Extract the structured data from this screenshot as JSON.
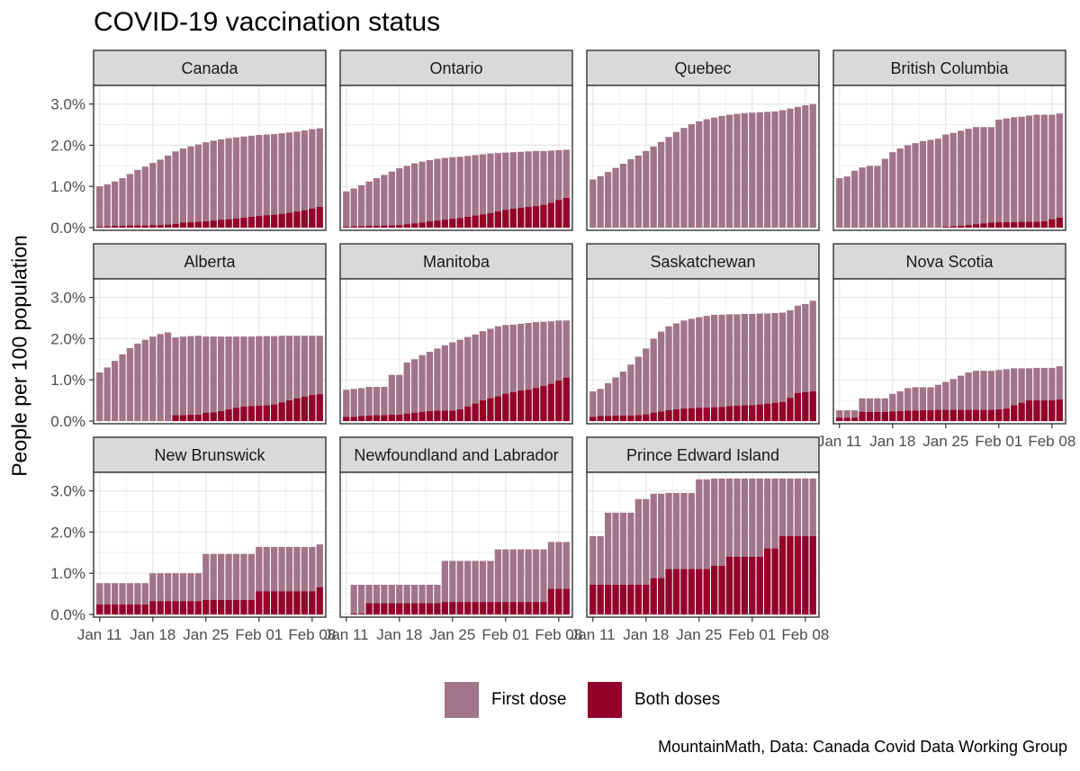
{
  "chart_data": {
    "type": "bar",
    "title": "COVID-19 vaccination status",
    "ylabel": "People per 100 population",
    "xlabel": "",
    "caption": "MountainMath, Data: Canada Covid Data Working Group",
    "ylim": [
      0,
      3.45
    ],
    "y_ticks": [
      "0.0%",
      "1.0%",
      "2.0%",
      "3.0%"
    ],
    "y_tick_values": [
      0,
      1,
      2,
      3
    ],
    "x_ticks": [
      "Jan 11",
      "Jan 18",
      "Jan 25",
      "Feb 01",
      "Feb 08"
    ],
    "x_tick_day_index": [
      0,
      7,
      14,
      21,
      28
    ],
    "x_start": "2021-01-11",
    "x_end": "2021-02-08",
    "stacking": "overlay",
    "legend": {
      "position": "bottom",
      "entries": [
        {
          "label": "First dose",
          "color": "#a27487"
        },
        {
          "label": "Both doses",
          "color": "#94002a"
        }
      ]
    },
    "grid": true,
    "panels": [
      {
        "name": "Canada",
        "first_dose": [
          1.0,
          1.05,
          1.12,
          1.2,
          1.3,
          1.4,
          1.48,
          1.57,
          1.65,
          1.75,
          1.85,
          1.92,
          1.97,
          2.02,
          2.07,
          2.11,
          2.14,
          2.17,
          2.19,
          2.21,
          2.23,
          2.25,
          2.26,
          2.27,
          2.29,
          2.31,
          2.33,
          2.36,
          2.39,
          2.41
        ],
        "both_doses": [
          0.02,
          0.03,
          0.04,
          0.04,
          0.05,
          0.05,
          0.05,
          0.06,
          0.06,
          0.07,
          0.09,
          0.12,
          0.13,
          0.14,
          0.15,
          0.17,
          0.19,
          0.2,
          0.22,
          0.24,
          0.26,
          0.28,
          0.3,
          0.31,
          0.33,
          0.36,
          0.39,
          0.42,
          0.46,
          0.5
        ]
      },
      {
        "name": "Ontario",
        "first_dose": [
          0.88,
          0.95,
          1.03,
          1.12,
          1.2,
          1.28,
          1.36,
          1.44,
          1.5,
          1.56,
          1.6,
          1.64,
          1.67,
          1.69,
          1.71,
          1.72,
          1.74,
          1.76,
          1.78,
          1.8,
          1.81,
          1.82,
          1.83,
          1.84,
          1.85,
          1.86,
          1.86,
          1.87,
          1.88,
          1.89
        ],
        "both_doses": [
          0.02,
          0.03,
          0.03,
          0.04,
          0.04,
          0.05,
          0.05,
          0.06,
          0.08,
          0.1,
          0.12,
          0.15,
          0.17,
          0.19,
          0.21,
          0.23,
          0.26,
          0.29,
          0.32,
          0.35,
          0.39,
          0.43,
          0.46,
          0.48,
          0.5,
          0.52,
          0.55,
          0.6,
          0.67,
          0.72
        ]
      },
      {
        "name": "Quebec",
        "first_dose": [
          1.17,
          1.25,
          1.35,
          1.45,
          1.55,
          1.66,
          1.75,
          1.86,
          1.97,
          2.08,
          2.2,
          2.32,
          2.42,
          2.51,
          2.58,
          2.63,
          2.67,
          2.71,
          2.74,
          2.76,
          2.78,
          2.79,
          2.8,
          2.81,
          2.82,
          2.85,
          2.89,
          2.93,
          2.97,
          3.0
        ],
        "both_doses": [
          0,
          0,
          0,
          0,
          0,
          0,
          0,
          0,
          0,
          0,
          0,
          0,
          0,
          0,
          0,
          0,
          0,
          0,
          0,
          0,
          0,
          0,
          0,
          0,
          0,
          0,
          0,
          0,
          0,
          0
        ]
      },
      {
        "name": "British Columbia",
        "first_dose": [
          1.2,
          1.24,
          1.38,
          1.46,
          1.5,
          1.5,
          1.67,
          1.83,
          1.92,
          2.0,
          2.05,
          2.1,
          2.13,
          2.16,
          2.26,
          2.3,
          2.35,
          2.4,
          2.44,
          2.44,
          2.44,
          2.62,
          2.65,
          2.68,
          2.69,
          2.72,
          2.74,
          2.74,
          2.74,
          2.77
        ],
        "both_doses": [
          0,
          0,
          0,
          0,
          0,
          0,
          0,
          0,
          0,
          0,
          0,
          0,
          0,
          0,
          0.02,
          0.03,
          0.04,
          0.06,
          0.08,
          0.1,
          0.12,
          0.13,
          0.13,
          0.13,
          0.14,
          0.14,
          0.14,
          0.15,
          0.2,
          0.24
        ]
      },
      {
        "name": "Alberta",
        "first_dose": [
          1.18,
          1.3,
          1.46,
          1.62,
          1.77,
          1.88,
          1.97,
          2.05,
          2.11,
          2.15,
          2.03,
          2.05,
          2.06,
          2.07,
          2.05,
          2.05,
          2.05,
          2.05,
          2.05,
          2.05,
          2.05,
          2.06,
          2.06,
          2.06,
          2.07,
          2.07,
          2.07,
          2.07,
          2.07,
          2.07
        ],
        "both_doses": [
          0,
          0,
          0,
          0,
          0,
          0,
          0,
          0,
          0,
          0,
          0.14,
          0.14,
          0.15,
          0.15,
          0.2,
          0.21,
          0.24,
          0.28,
          0.32,
          0.35,
          0.36,
          0.37,
          0.38,
          0.4,
          0.45,
          0.5,
          0.55,
          0.59,
          0.63,
          0.65
        ]
      },
      {
        "name": "Manitoba",
        "first_dose": [
          0.76,
          0.78,
          0.8,
          0.83,
          0.83,
          0.83,
          1.12,
          1.12,
          1.42,
          1.5,
          1.6,
          1.68,
          1.76,
          1.84,
          1.91,
          1.97,
          2.04,
          2.1,
          2.18,
          2.24,
          2.3,
          2.33,
          2.34,
          2.36,
          2.38,
          2.4,
          2.41,
          2.42,
          2.44,
          2.44
        ],
        "both_doses": [
          0.1,
          0.1,
          0.12,
          0.13,
          0.14,
          0.14,
          0.15,
          0.15,
          0.18,
          0.2,
          0.22,
          0.24,
          0.25,
          0.25,
          0.25,
          0.28,
          0.35,
          0.42,
          0.5,
          0.55,
          0.6,
          0.66,
          0.7,
          0.74,
          0.76,
          0.8,
          0.85,
          0.9,
          0.98,
          1.05
        ]
      },
      {
        "name": "Saskatchewan",
        "first_dose": [
          0.72,
          0.78,
          0.92,
          1.06,
          1.2,
          1.37,
          1.56,
          1.76,
          2.0,
          2.17,
          2.3,
          2.37,
          2.44,
          2.48,
          2.52,
          2.55,
          2.58,
          2.58,
          2.59,
          2.59,
          2.6,
          2.6,
          2.61,
          2.61,
          2.62,
          2.63,
          2.69,
          2.8,
          2.84,
          2.92
        ],
        "both_doses": [
          0.1,
          0.12,
          0.12,
          0.13,
          0.13,
          0.13,
          0.14,
          0.16,
          0.2,
          0.23,
          0.26,
          0.28,
          0.3,
          0.31,
          0.32,
          0.32,
          0.33,
          0.34,
          0.36,
          0.37,
          0.38,
          0.38,
          0.4,
          0.42,
          0.44,
          0.46,
          0.56,
          0.68,
          0.7,
          0.72
        ]
      },
      {
        "name": "Nova Scotia",
        "first_dose": [
          0.26,
          0.26,
          0.26,
          0.55,
          0.55,
          0.55,
          0.55,
          0.66,
          0.72,
          0.8,
          0.82,
          0.82,
          0.82,
          0.88,
          0.95,
          1.02,
          1.1,
          1.18,
          1.22,
          1.22,
          1.22,
          1.24,
          1.26,
          1.28,
          1.28,
          1.28,
          1.29,
          1.29,
          1.29,
          1.33
        ],
        "both_doses": [
          0.08,
          0.08,
          0.08,
          0.22,
          0.22,
          0.22,
          0.22,
          0.23,
          0.24,
          0.25,
          0.25,
          0.26,
          0.26,
          0.27,
          0.27,
          0.27,
          0.27,
          0.27,
          0.27,
          0.27,
          0.27,
          0.28,
          0.3,
          0.38,
          0.44,
          0.5,
          0.5,
          0.5,
          0.5,
          0.52
        ]
      },
      {
        "name": "New Brunswick",
        "first_dose": [
          0.76,
          0.76,
          0.76,
          0.76,
          0.76,
          0.76,
          0.76,
          1.0,
          1.0,
          1.0,
          1.0,
          1.0,
          1.0,
          1.0,
          1.47,
          1.47,
          1.47,
          1.47,
          1.47,
          1.47,
          1.47,
          1.64,
          1.64,
          1.64,
          1.64,
          1.64,
          1.64,
          1.64,
          1.64,
          1.7
        ],
        "both_doses": [
          0.24,
          0.24,
          0.24,
          0.24,
          0.24,
          0.24,
          0.24,
          0.32,
          0.32,
          0.32,
          0.32,
          0.32,
          0.32,
          0.32,
          0.35,
          0.35,
          0.35,
          0.35,
          0.35,
          0.35,
          0.35,
          0.56,
          0.56,
          0.56,
          0.56,
          0.56,
          0.56,
          0.56,
          0.56,
          0.66
        ]
      },
      {
        "name": "Newfoundland and Labrador",
        "first_dose": [
          0,
          0.72,
          0.72,
          0.72,
          0.72,
          0.72,
          0.72,
          0.72,
          0.72,
          0.72,
          0.72,
          0.72,
          0.72,
          1.3,
          1.3,
          1.3,
          1.3,
          1.3,
          1.3,
          1.3,
          1.58,
          1.58,
          1.58,
          1.58,
          1.58,
          1.58,
          1.58,
          1.76,
          1.76,
          1.76
        ],
        "both_doses": [
          0,
          0.02,
          0.02,
          0.27,
          0.27,
          0.27,
          0.27,
          0.27,
          0.27,
          0.27,
          0.27,
          0.27,
          0.27,
          0.3,
          0.3,
          0.3,
          0.3,
          0.3,
          0.3,
          0.3,
          0.3,
          0.3,
          0.3,
          0.3,
          0.3,
          0.3,
          0.3,
          0.62,
          0.62,
          0.62
        ]
      },
      {
        "name": "Prince Edward Island",
        "first_dose": [
          1.9,
          1.9,
          2.47,
          2.47,
          2.47,
          2.47,
          2.8,
          2.8,
          2.93,
          2.93,
          2.95,
          2.95,
          2.95,
          2.95,
          3.28,
          3.28,
          3.3,
          3.3,
          3.3,
          3.3,
          3.3,
          3.3,
          3.3,
          3.3,
          3.3,
          3.3,
          3.3,
          3.3,
          3.3,
          3.3
        ],
        "both_doses": [
          0.72,
          0.72,
          0.72,
          0.72,
          0.72,
          0.72,
          0.72,
          0.72,
          0.88,
          0.88,
          1.1,
          1.1,
          1.1,
          1.1,
          1.1,
          1.1,
          1.18,
          1.18,
          1.4,
          1.4,
          1.4,
          1.4,
          1.4,
          1.6,
          1.6,
          1.9,
          1.9,
          1.9,
          1.9,
          1.9
        ]
      }
    ]
  }
}
